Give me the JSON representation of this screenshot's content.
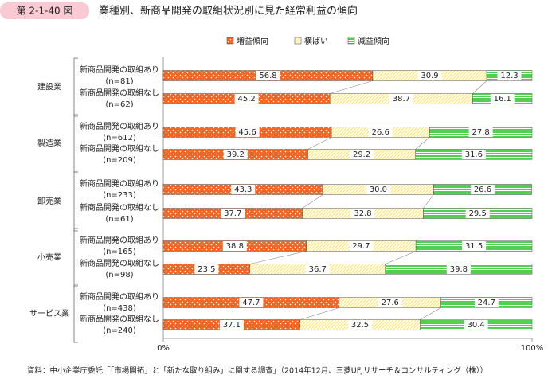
{
  "chart_data": {
    "type": "stacked-barh",
    "figure_label": "第 2-1-40 図",
    "title": "業種別、新商品開発の取組状況別に見た経常利益の傾向",
    "source": "資料：中小企業庁委託「「市場開拓」と「新たな取り組み」に関する調査」（2014年12月、三菱UFJリサーチ＆コンサルティング（株））",
    "groups": [
      "建設業",
      "製造業",
      "卸売業",
      "小売業",
      "サービス業"
    ],
    "categories": [
      [
        "新商品開発の取組あり",
        "(n=81)"
      ],
      [
        "新商品開発の取組なし",
        "(n=62)"
      ],
      [
        "新商品開発の取組あり",
        "(n=612)"
      ],
      [
        "新商品開発の取組なし",
        "(n=209)"
      ],
      [
        "新商品開発の取組あり",
        "(n=233)"
      ],
      [
        "新商品開発の取組なし",
        "(n=61)"
      ],
      [
        "新商品開発の取組あり",
        "(n=165)"
      ],
      [
        "新商品開発の取組なし",
        "(n=98)"
      ],
      [
        "新商品開発の取組あり",
        "(n=438)"
      ],
      [
        "新商品開発の取組なし",
        "(n=240)"
      ]
    ],
    "series": [
      {
        "name": "増益傾向",
        "color": "#f26522",
        "pattern": "dots",
        "values": [
          56.8,
          45.2,
          45.6,
          39.2,
          43.3,
          37.7,
          38.8,
          23.5,
          47.7,
          37.1
        ],
        "value_labels": [
          "56.8",
          "45.2",
          "45.6",
          "39.2",
          "43.3",
          "37.7",
          "38.8",
          "23.5",
          "47.7",
          "37.1"
        ]
      },
      {
        "name": "横ばい",
        "color": "#ffe97a",
        "pattern": "hatch",
        "values": [
          30.9,
          38.7,
          26.6,
          29.2,
          30.0,
          32.8,
          29.7,
          36.7,
          27.6,
          32.5
        ],
        "value_labels": [
          "30.9",
          "38.7",
          "26.6",
          "29.2",
          "30.0",
          "32.8",
          "29.7",
          "36.7",
          "27.6",
          "32.5"
        ]
      },
      {
        "name": "減益傾向",
        "color": "#4fd04f",
        "pattern": "stripes",
        "values": [
          12.3,
          16.1,
          27.8,
          31.6,
          26.6,
          29.5,
          31.5,
          39.8,
          24.7,
          30.4
        ],
        "value_labels": [
          "12.3",
          "16.1",
          "27.8",
          "31.6",
          "26.6",
          "29.5",
          "31.5",
          "39.8",
          "24.7",
          "30.4"
        ]
      }
    ],
    "xlim": [
      0,
      100
    ],
    "xticks": [
      {
        "value": 0,
        "label": "0%"
      },
      {
        "value": 100,
        "label": "100%"
      }
    ]
  }
}
